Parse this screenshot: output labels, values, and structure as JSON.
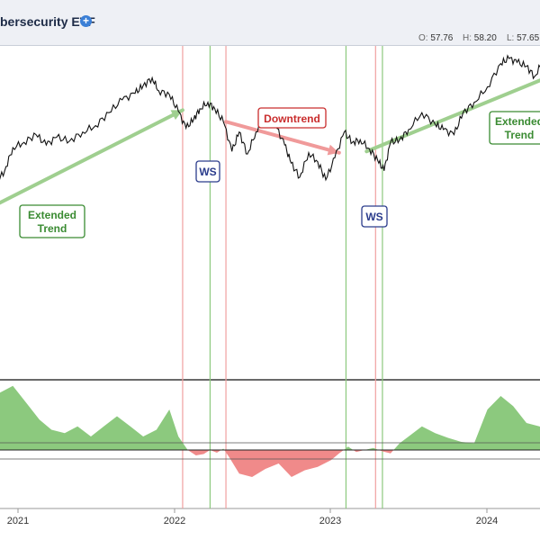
{
  "header": {
    "title": "bersecurity ETF",
    "ohlc": [
      {
        "key": "O:",
        "value": "57.76"
      },
      {
        "key": "H:",
        "value": "58.20"
      },
      {
        "key": "L:",
        "value": "57.65"
      }
    ]
  },
  "chart_data": {
    "type": "line",
    "x_tick_labels": [
      "2021",
      "2022",
      "2023",
      "2024"
    ],
    "price_series": {
      "x": [
        "2020-09-20",
        "2020-10-15",
        "2020-11-10",
        "2020-12-01",
        "2020-12-20",
        "2021-01-15",
        "2021-02-12",
        "2021-03-08",
        "2021-04-01",
        "2021-05-01",
        "2021-06-01",
        "2021-07-01",
        "2021-08-01",
        "2021-09-01",
        "2021-10-01",
        "2021-10-20",
        "2021-11-10",
        "2021-11-25",
        "2021-12-20",
        "2022-01-10",
        "2022-01-28",
        "2022-02-15",
        "2022-03-01",
        "2022-03-20",
        "2022-04-05",
        "2022-04-25",
        "2022-05-15",
        "2022-06-01",
        "2022-06-20",
        "2022-07-10",
        "2022-08-01",
        "2022-08-25",
        "2022-09-15",
        "2022-09-30",
        "2022-10-20",
        "2022-11-10",
        "2022-12-01",
        "2022-12-20",
        "2023-01-10",
        "2023-02-01",
        "2023-02-20",
        "2023-03-10",
        "2023-04-01",
        "2023-04-20",
        "2023-05-05",
        "2023-05-20",
        "2023-06-10",
        "2023-07-01",
        "2023-08-01",
        "2023-09-01",
        "2023-09-20",
        "2023-10-15",
        "2023-11-05",
        "2023-12-01",
        "2024-01-01",
        "2024-02-01",
        "2024-02-20",
        "2024-03-10",
        "2024-04-01",
        "2024-04-20",
        "2024-05-10",
        "2024-06-01",
        "2024-07-01"
      ],
      "y": [
        45.5,
        46.5,
        48.0,
        49.0,
        50.8,
        51.2,
        51.8,
        51.0,
        51.6,
        51.3,
        52.0,
        52.5,
        53.5,
        54.5,
        55.0,
        55.6,
        56.2,
        55.2,
        54.9,
        53.6,
        52.3,
        53.0,
        53.8,
        54.3,
        53.8,
        52.8,
        50.5,
        52.0,
        50.3,
        52.0,
        53.7,
        52.5,
        51.0,
        49.6,
        48.5,
        50.4,
        49.7,
        48.3,
        50.0,
        52.0,
        51.2,
        51.4,
        50.7,
        49.8,
        49.0,
        51.2,
        51.4,
        52.2,
        53.5,
        52.6,
        52.2,
        51.8,
        53.5,
        54.3,
        55.5,
        57.3,
        57.7,
        57.4,
        57.1,
        56.3,
        57.5,
        57.2,
        57.8
      ]
    },
    "indicator_series": {
      "x": [
        "2020-09-20",
        "2020-10-20",
        "2020-11-20",
        "2020-12-20",
        "2021-01-20",
        "2021-02-20",
        "2021-03-20",
        "2021-04-20",
        "2021-05-20",
        "2021-06-20",
        "2021-07-20",
        "2021-08-20",
        "2021-09-20",
        "2021-10-20",
        "2021-11-20",
        "2021-12-20",
        "2022-01-10",
        "2022-02-01",
        "2022-02-20",
        "2022-03-10",
        "2022-03-25",
        "2022-04-10",
        "2022-04-25",
        "2022-05-10",
        "2022-06-01",
        "2022-07-01",
        "2022-08-01",
        "2022-09-01",
        "2022-10-01",
        "2022-11-01",
        "2022-12-01",
        "2023-01-01",
        "2023-01-20",
        "2023-02-10",
        "2023-03-01",
        "2023-03-20",
        "2023-04-10",
        "2023-05-01",
        "2023-05-20",
        "2023-06-10",
        "2023-07-01",
        "2023-08-01",
        "2023-09-01",
        "2023-10-01",
        "2023-11-01",
        "2023-12-01",
        "2024-01-01",
        "2024-02-01",
        "2024-03-01",
        "2024-04-01",
        "2024-05-01",
        "2024-06-01",
        "2024-07-01"
      ],
      "y": [
        15,
        65,
        85,
        95,
        70,
        45,
        30,
        25,
        35,
        20,
        35,
        50,
        35,
        20,
        30,
        60,
        20,
        0,
        -8,
        -6,
        0,
        -4,
        2,
        -12,
        -35,
        -40,
        -28,
        -20,
        -40,
        -30,
        -25,
        -15,
        -5,
        5,
        -3,
        0,
        3,
        -2,
        -5,
        10,
        20,
        35,
        25,
        18,
        12,
        10,
        60,
        80,
        65,
        40,
        35,
        25,
        20
      ],
      "zero_line": 0
    },
    "annotations": [
      {
        "text": "Extended",
        "text2": "Trend",
        "color": "#3a8b32"
      },
      {
        "text": "WS",
        "color": "#2b3c8c"
      },
      {
        "text": "Downtrend",
        "color": "#c92d2d"
      },
      {
        "text": "WS",
        "color": "#2b3c8c"
      },
      {
        "text": "Extended",
        "text2": "Trend",
        "color": "#3a8b32"
      }
    ],
    "trend_arrows": [
      {
        "kind": "extended-trend",
        "color": "#9fcf8f",
        "from": [
          "2020-09-20",
          45.5
        ],
        "to": [
          "2022-01-20",
          53.7
        ]
      },
      {
        "kind": "downtrend",
        "color": "#f09a9a",
        "from": [
          "2022-05-01",
          52.8
        ],
        "to": [
          "2023-01-20",
          50.4
        ]
      },
      {
        "kind": "extended-trend",
        "color": "#9fcf8f",
        "from": [
          "2023-03-25",
          50.5
        ],
        "to": [
          "2024-07-15",
          57.0
        ]
      }
    ],
    "vertical_markers": [
      {
        "date": "2022-01-20",
        "color": "#f0a0a0"
      },
      {
        "date": "2022-03-25",
        "color": "#8cc97e"
      },
      {
        "date": "2022-05-01",
        "color": "#f0a0a0"
      },
      {
        "date": "2023-02-05",
        "color": "#8cc97e"
      },
      {
        "date": "2023-04-15",
        "color": "#f0a0a0"
      },
      {
        "date": "2023-05-01",
        "color": "#8cc97e"
      }
    ],
    "colors": {
      "price_line": "#111111",
      "positive_fill": "#8cc97e",
      "negative_fill": "#f08a8a"
    },
    "grid": false
  }
}
